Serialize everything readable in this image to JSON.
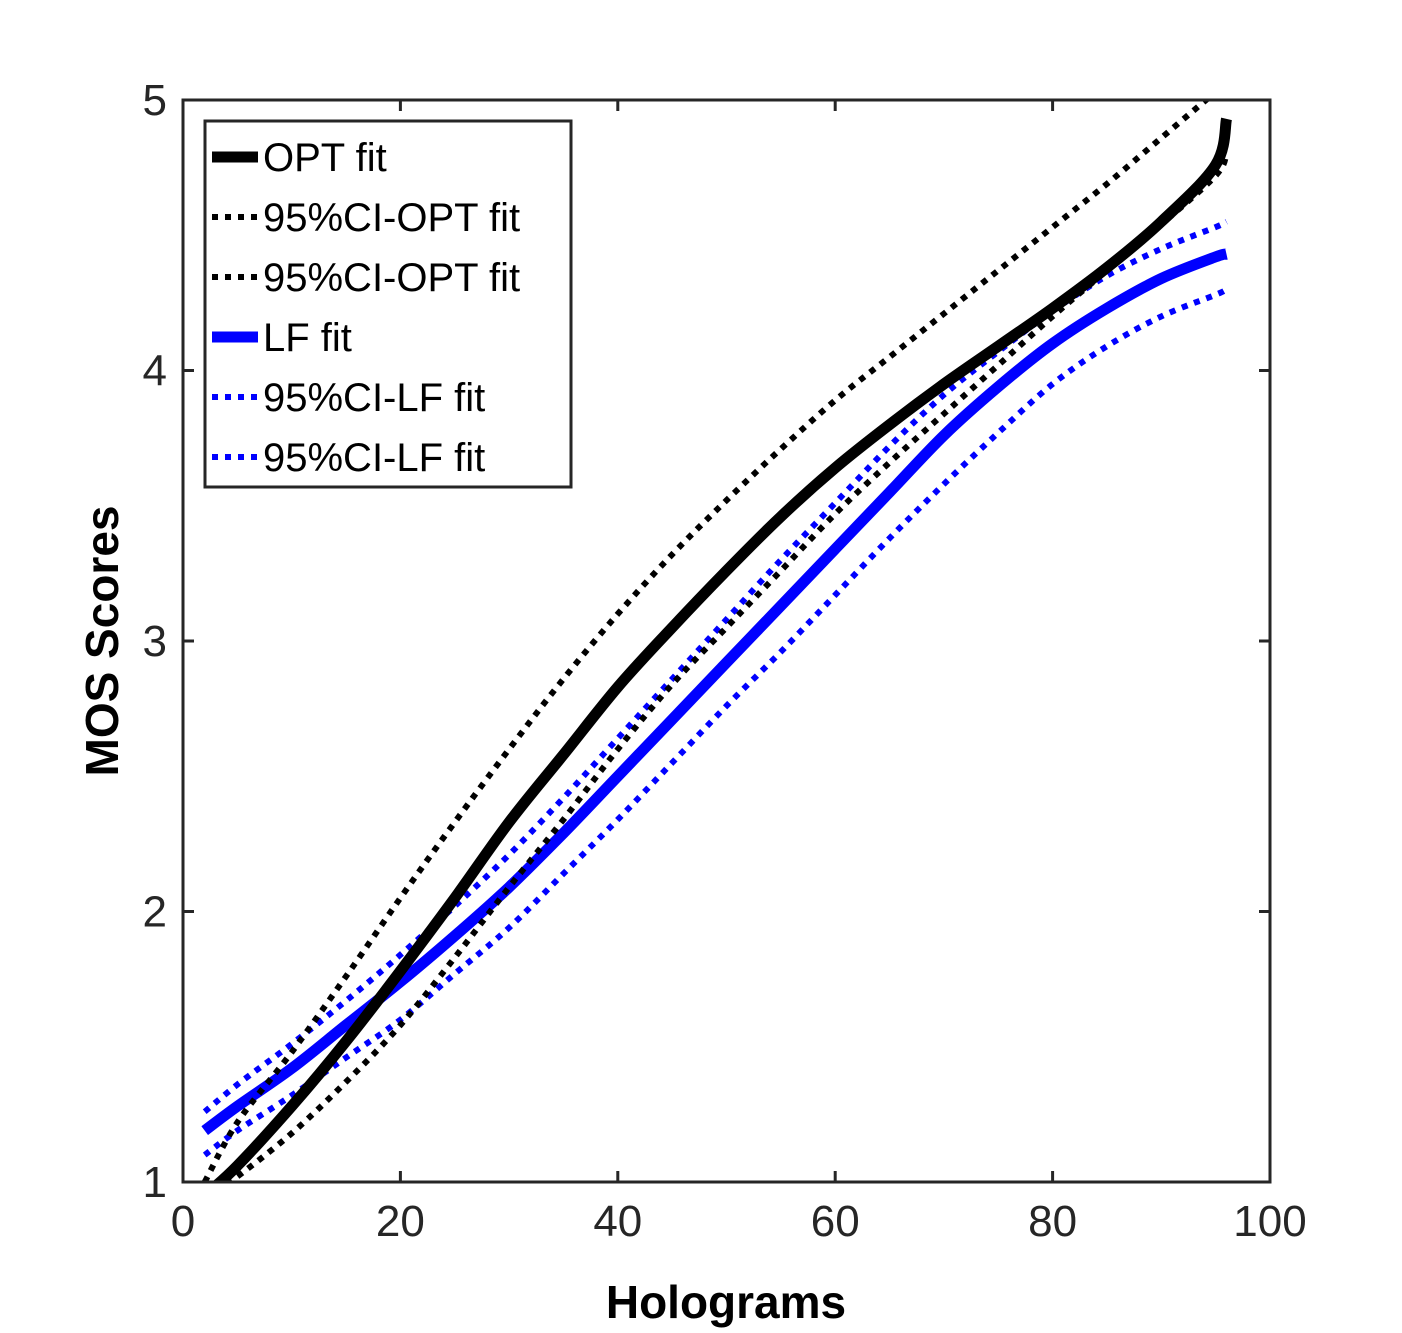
{
  "chart_data": {
    "type": "line",
    "xlabel": "Holograms",
    "ylabel": "MOS Scores",
    "xlim": [
      0,
      100
    ],
    "ylim": [
      1,
      5
    ],
    "xticks": [
      "0",
      "20",
      "40",
      "60",
      "80",
      "100"
    ],
    "yticks": [
      "1",
      "2",
      "3",
      "4",
      "5"
    ],
    "grid": false,
    "legend_position": "top-left",
    "series": [
      {
        "name": "OPT fit",
        "color": "#000000",
        "style": "solid",
        "x": [
          2,
          5,
          10,
          15,
          20,
          25,
          30,
          35,
          40,
          45,
          50,
          55,
          60,
          65,
          70,
          75,
          80,
          85,
          90,
          95,
          96
        ],
        "y": [
          0.95,
          1.06,
          1.28,
          1.52,
          1.78,
          2.05,
          2.33,
          2.58,
          2.83,
          3.05,
          3.26,
          3.46,
          3.64,
          3.8,
          3.95,
          4.09,
          4.23,
          4.38,
          4.55,
          4.76,
          4.93
        ]
      },
      {
        "name": "95%CI-OPT fit",
        "color": "#000000",
        "style": "dotted",
        "x": [
          2,
          5,
          10,
          15,
          20,
          25,
          30,
          35,
          40,
          45,
          50,
          55,
          60,
          65,
          70,
          75,
          80,
          85,
          90,
          95
        ],
        "y": [
          1.0,
          1.22,
          1.48,
          1.76,
          2.05,
          2.33,
          2.6,
          2.86,
          3.1,
          3.32,
          3.52,
          3.71,
          3.89,
          4.05,
          4.21,
          4.37,
          4.53,
          4.69,
          4.86,
          5.03
        ]
      },
      {
        "name": "95%CI-OPT fit",
        "color": "#000000",
        "style": "dotted",
        "x": [
          3,
          5,
          10,
          15,
          20,
          25,
          30,
          35,
          40,
          45,
          50,
          55,
          60,
          65,
          70,
          75,
          80,
          85,
          90,
          95,
          96
        ],
        "y": [
          0.97,
          1.02,
          1.18,
          1.37,
          1.58,
          1.83,
          2.09,
          2.34,
          2.6,
          2.84,
          3.05,
          3.26,
          3.47,
          3.66,
          3.84,
          4.02,
          4.2,
          4.37,
          4.54,
          4.72,
          4.8
        ]
      },
      {
        "name": "LF fit",
        "color": "#0000FF",
        "style": "solid",
        "x": [
          2,
          5,
          10,
          15,
          20,
          25,
          30,
          35,
          40,
          45,
          50,
          55,
          60,
          65,
          70,
          75,
          80,
          85,
          90,
          95,
          96
        ],
        "y": [
          1.19,
          1.28,
          1.42,
          1.58,
          1.74,
          1.91,
          2.09,
          2.29,
          2.5,
          2.71,
          2.92,
          3.13,
          3.34,
          3.55,
          3.76,
          3.94,
          4.1,
          4.23,
          4.34,
          4.42,
          4.43
        ]
      },
      {
        "name": "95%CI-LF fit",
        "color": "#0000FF",
        "style": "dotted",
        "x": [
          2,
          5,
          10,
          15,
          20,
          25,
          30,
          35,
          40,
          45,
          50,
          55,
          60,
          65,
          70,
          75,
          80,
          85,
          90,
          95,
          96
        ],
        "y": [
          1.26,
          1.36,
          1.51,
          1.67,
          1.84,
          2.02,
          2.21,
          2.42,
          2.64,
          2.86,
          3.08,
          3.3,
          3.51,
          3.72,
          3.91,
          4.07,
          4.22,
          4.35,
          4.45,
          4.53,
          4.55
        ]
      },
      {
        "name": "95%CI-LF fit",
        "color": "#0000FF",
        "style": "dotted",
        "x": [
          2,
          5,
          10,
          15,
          20,
          25,
          30,
          35,
          40,
          45,
          50,
          55,
          60,
          65,
          70,
          75,
          80,
          85,
          90,
          95,
          96
        ],
        "y": [
          1.1,
          1.19,
          1.32,
          1.46,
          1.6,
          1.77,
          1.94,
          2.14,
          2.34,
          2.55,
          2.76,
          2.96,
          3.17,
          3.38,
          3.58,
          3.77,
          3.95,
          4.09,
          4.2,
          4.28,
          4.3
        ]
      }
    ]
  }
}
